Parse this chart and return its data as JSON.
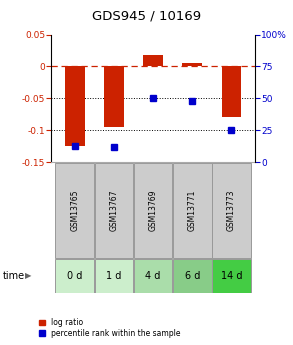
{
  "title": "GDS945 / 10169",
  "samples": [
    "GSM13765",
    "GSM13767",
    "GSM13769",
    "GSM13771",
    "GSM13773"
  ],
  "time_labels": [
    "0 d",
    "1 d",
    "4 d",
    "6 d",
    "14 d"
  ],
  "log_ratio": [
    -0.125,
    -0.095,
    0.018,
    0.005,
    -0.08
  ],
  "percentile_rank": [
    13,
    12,
    50,
    48,
    25
  ],
  "ylim_left": [
    -0.15,
    0.05
  ],
  "ylim_right": [
    0,
    100
  ],
  "left_ticks": [
    0.05,
    0,
    -0.05,
    -0.1,
    -0.15
  ],
  "right_ticks": [
    100,
    75,
    50,
    25,
    0
  ],
  "bar_color": "#cc2200",
  "dot_color": "#0000cc",
  "background_color": "#ffffff",
  "sample_row_color": "#cccccc",
  "cell_border_color": "#999999",
  "green_colors": [
    "#cceecc",
    "#cceecc",
    "#aaddaa",
    "#88cc88",
    "#44cc44"
  ],
  "legend_labels": [
    "log ratio",
    "percentile rank within the sample"
  ]
}
